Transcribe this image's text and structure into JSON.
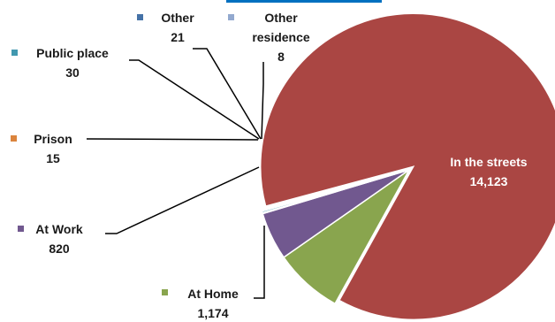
{
  "chart_data": {
    "type": "pie",
    "title": "",
    "slices": [
      {
        "label": "In the streets",
        "value": 14123,
        "value_text": "14,123",
        "color": "#aa4643"
      },
      {
        "label": "At Home",
        "value": 1174,
        "value_text": "1,174",
        "color": "#89a54e"
      },
      {
        "label": "At Work",
        "value": 820,
        "value_text": "820",
        "color": "#71588f"
      },
      {
        "label": "Prison",
        "value": 15,
        "value_text": "15",
        "color": "#db843d"
      },
      {
        "label": "Public place",
        "value": 30,
        "value_text": "30",
        "color": "#4198af"
      },
      {
        "label": "Other",
        "value": 21,
        "value_text": "21",
        "color": "#4572a7"
      },
      {
        "label": "Other residence",
        "value": 8,
        "value_text": "8",
        "color": "#93a9cf"
      }
    ],
    "header_accent_color": "#0070c0"
  }
}
